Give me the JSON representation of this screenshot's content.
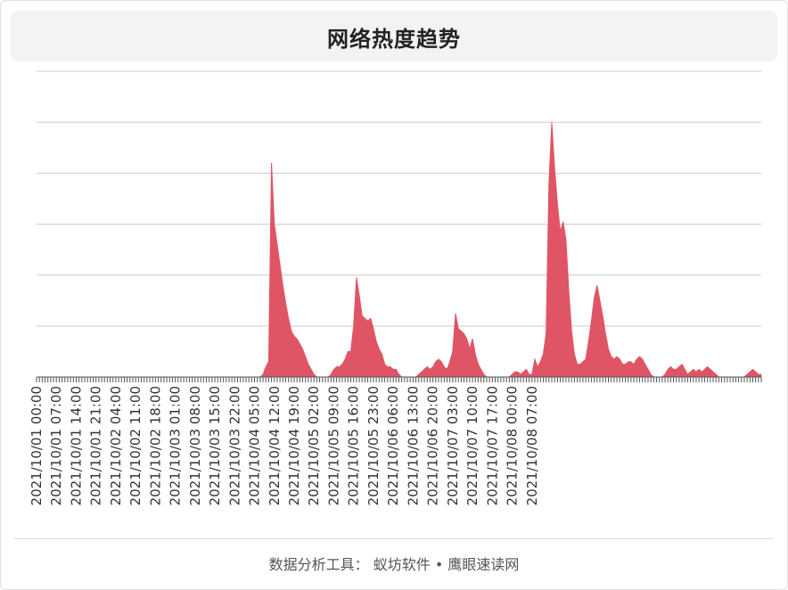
{
  "header": {
    "title": "网络热度趋势"
  },
  "footer": {
    "text": "数据分析工具： 蚁坊软件 • 鹰眼速读网"
  },
  "colors": {
    "area": "#e05565",
    "grid": "#cccccc",
    "axis": "#555555"
  },
  "chart_data": {
    "type": "area",
    "title": "网络热度趋势",
    "grid": true,
    "legend": "none",
    "xlabel": "",
    "ylabel": "",
    "ylim": [
      0,
      6
    ],
    "tick_labels": [
      "2021/10/01 00:00",
      "2021/10/01 07:00",
      "2021/10/01 14:00",
      "2021/10/01 21:00",
      "2021/10/02 04:00",
      "2021/10/02 11:00",
      "2021/10/02 18:00",
      "2021/10/03 01:00",
      "2021/10/03 08:00",
      "2021/10/03 15:00",
      "2021/10/03 22:00",
      "2021/10/04 05:00",
      "2021/10/04 12:00",
      "2021/10/04 19:00",
      "2021/10/05 02:00",
      "2021/10/05 09:00",
      "2021/10/05 16:00",
      "2021/10/05 23:00",
      "2021/10/06 06:00",
      "2021/10/06 13:00",
      "2021/10/06 20:00",
      "2021/10/07 03:00",
      "2021/10/07 10:00",
      "2021/10/07 17:00",
      "2021/10/08 00:00",
      "2021/10/08 07:00"
    ],
    "series": [
      {
        "values": [
          0,
          0,
          0,
          0,
          0,
          0,
          0,
          0,
          0,
          0,
          0,
          0,
          0,
          0,
          0,
          0,
          0,
          0,
          0,
          0,
          0,
          0,
          0,
          0,
          0,
          0,
          0,
          0,
          0,
          0,
          0,
          0,
          0,
          0,
          0,
          0,
          0,
          0,
          0,
          0,
          0,
          0,
          0,
          0,
          0,
          0,
          0,
          0,
          0,
          0,
          0,
          0,
          0,
          0,
          0,
          0,
          0,
          0,
          0,
          0,
          0,
          0,
          0,
          0,
          0,
          0,
          0,
          0,
          0,
          0,
          0,
          0,
          0,
          0,
          0,
          0,
          0,
          0,
          0,
          0,
          0.05,
          0.2,
          0.3,
          4.2,
          3.0,
          2.6,
          2.2,
          1.8,
          1.45,
          1.15,
          0.9,
          0.8,
          0.75,
          0.65,
          0.55,
          0.4,
          0.25,
          0.15,
          0.05,
          0,
          0,
          0,
          0,
          0,
          0.05,
          0.15,
          0.2,
          0.2,
          0.25,
          0.35,
          0.5,
          0.5,
          1.0,
          1.95,
          1.6,
          1.2,
          1.15,
          1.1,
          1.15,
          0.95,
          0.7,
          0.55,
          0.45,
          0.25,
          0.2,
          0.2,
          0.15,
          0.15,
          0.05,
          0,
          0,
          0,
          0,
          0,
          0,
          0.05,
          0.1,
          0.15,
          0.2,
          0.15,
          0.2,
          0.3,
          0.35,
          0.3,
          0.2,
          0.15,
          0.3,
          0.5,
          1.25,
          0.95,
          0.9,
          0.85,
          0.75,
          0.55,
          0.75,
          0.45,
          0.25,
          0.15,
          0.05,
          0,
          0,
          0,
          0,
          0,
          0,
          0,
          0,
          0,
          0.05,
          0.1,
          0.1,
          0.05,
          0.1,
          0.15,
          0.05,
          0.05,
          0.35,
          0.2,
          0.3,
          0.45,
          0.85,
          3.8,
          5.0,
          4.1,
          3.4,
          2.85,
          3.05,
          2.7,
          1.7,
          0.9,
          0.45,
          0.25,
          0.25,
          0.3,
          0.35,
          0.7,
          1.1,
          1.55,
          1.8,
          1.5,
          1.2,
          0.85,
          0.55,
          0.4,
          0.35,
          0.4,
          0.35,
          0.25,
          0.25,
          0.3,
          0.3,
          0.25,
          0.35,
          0.4,
          0.35,
          0.25,
          0.15,
          0.05,
          0,
          0,
          0,
          0,
          0.05,
          0.15,
          0.2,
          0.15,
          0.15,
          0.2,
          0.25,
          0.15,
          0.05,
          0.1,
          0.15,
          0.1,
          0.15,
          0.1,
          0.15,
          0.2,
          0.15,
          0.1,
          0.05,
          0,
          0,
          0,
          0,
          0,
          0,
          0,
          0,
          0,
          0,
          0.05,
          0.1,
          0.15,
          0.1,
          0.05,
          0.05
        ]
      }
    ]
  }
}
